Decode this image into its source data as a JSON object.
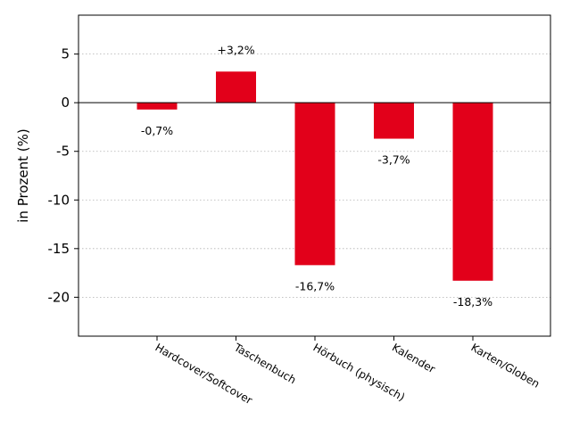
{
  "chart_data": {
    "type": "bar",
    "categories": [
      "Hardcover/Softcover",
      "Taschenbuch",
      "Hörbuch (physisch)",
      "Kalender",
      "Karten/Globen"
    ],
    "values": [
      -0.7,
      3.2,
      -16.7,
      -3.7,
      -18.3
    ],
    "data_labels": [
      "-0,7%",
      "+3,2%",
      "-16,7%",
      "-3,7%",
      "-18,3%"
    ],
    "ylabel": "in Prozent (%)",
    "ylim": [
      -24,
      9
    ],
    "yticks": [
      5,
      0,
      -5,
      -10,
      -15,
      -20
    ],
    "grid": true,
    "bar_color": "#e2001a"
  }
}
